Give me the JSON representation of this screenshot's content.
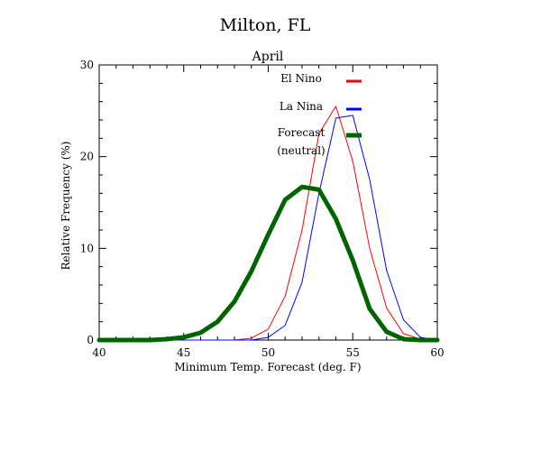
{
  "chart_data": {
    "type": "line",
    "title": "Milton, FL",
    "subtitle": "April",
    "xlabel": "Minimum Temp. Forecast (deg. F)",
    "ylabel": "Relative Frequency (%)",
    "xlim": [
      40,
      60
    ],
    "ylim": [
      0,
      30
    ],
    "x_ticks": [
      40,
      45,
      50,
      55,
      60
    ],
    "y_ticks": [
      0,
      10,
      20,
      30
    ],
    "x_tick_labels": [
      "40",
      "45",
      "50",
      "55",
      "60"
    ],
    "y_tick_labels": [
      "0",
      "10",
      "20",
      "30"
    ],
    "grid": false,
    "legend_position": "top-right",
    "series": [
      {
        "name": "El Nino",
        "color": "#ff0000",
        "stroke": "thin",
        "points": [
          [
            40,
            0
          ],
          [
            41,
            0
          ],
          [
            42,
            0
          ],
          [
            43,
            0
          ],
          [
            44,
            0
          ],
          [
            45,
            0
          ],
          [
            46,
            0
          ],
          [
            47,
            0
          ],
          [
            48,
            0
          ],
          [
            49,
            0.2
          ],
          [
            50,
            1.2
          ],
          [
            51,
            4.8
          ],
          [
            52,
            12
          ],
          [
            53,
            22.5
          ],
          [
            54,
            25.5
          ],
          [
            55,
            19.5
          ],
          [
            56,
            10
          ],
          [
            57,
            3.5
          ],
          [
            58,
            0.7
          ],
          [
            59,
            0.1
          ],
          [
            60,
            0
          ]
        ]
      },
      {
        "name": "La Nina",
        "color": "#0000ff",
        "stroke": "thin",
        "points": [
          [
            40,
            0
          ],
          [
            41,
            0
          ],
          [
            42,
            0
          ],
          [
            43,
            0
          ],
          [
            44,
            0
          ],
          [
            45,
            0
          ],
          [
            46,
            0
          ],
          [
            47,
            0
          ],
          [
            48,
            0
          ],
          [
            49,
            0
          ],
          [
            50,
            0.3
          ],
          [
            51,
            1.6
          ],
          [
            52,
            6.3
          ],
          [
            53,
            16
          ],
          [
            54,
            24.2
          ],
          [
            55,
            24.5
          ],
          [
            56,
            17.5
          ],
          [
            57,
            7.6
          ],
          [
            58,
            2.2
          ],
          [
            59,
            0.3
          ],
          [
            60,
            0
          ]
        ]
      },
      {
        "name": "Forecast\n(neutral)",
        "color": "#006400",
        "stroke": "thick",
        "points": [
          [
            40,
            0
          ],
          [
            41,
            0
          ],
          [
            42,
            0
          ],
          [
            43,
            0
          ],
          [
            44,
            0.1
          ],
          [
            45,
            0.3
          ],
          [
            46,
            0.8
          ],
          [
            47,
            2
          ],
          [
            48,
            4.2
          ],
          [
            49,
            7.5
          ],
          [
            50,
            11.5
          ],
          [
            51,
            15.3
          ],
          [
            52,
            16.7
          ],
          [
            53,
            16.4
          ],
          [
            54,
            13.2
          ],
          [
            55,
            8.7
          ],
          [
            56,
            3.4
          ],
          [
            57,
            0.9
          ],
          [
            58,
            0.1
          ],
          [
            59,
            0
          ],
          [
            60,
            0
          ]
        ]
      }
    ]
  }
}
